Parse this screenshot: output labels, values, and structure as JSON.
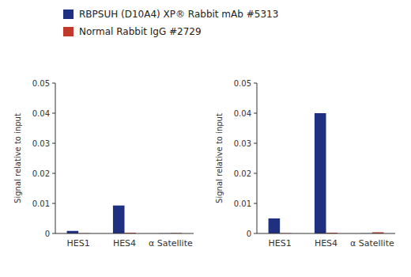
{
  "chart_data": [
    {
      "type": "bar",
      "categories": [
        "HES1",
        "HES4",
        "α Satellite"
      ],
      "series": [
        {
          "name": "RBPSUH (D10A4) XP® Rabbit mAb #5313",
          "color": "#1f3080",
          "values": [
            0.00085,
            0.0093,
            5e-05
          ]
        },
        {
          "name": "Normal Rabbit IgG #2729",
          "color": "#c0392b",
          "values": [
            8e-05,
            0.00025,
            0.00015
          ]
        }
      ],
      "y_label": "Signal relative to input",
      "ylim": [
        0,
        0.05
      ],
      "yticks": [
        0,
        0.01,
        0.02,
        0.03,
        0.04,
        0.05
      ],
      "grid": false,
      "legend": "top"
    },
    {
      "type": "bar",
      "categories": [
        "HES1",
        "HES4",
        "α Satellite"
      ],
      "series": [
        {
          "color": "#1f3080",
          "values": [
            0.005,
            0.04,
            5e-05
          ]
        },
        {
          "color": "#c0392b",
          "values": [
            0.0001,
            0.00025,
            0.0004
          ]
        }
      ],
      "y_label": "Signal relative to input",
      "ylim": [
        0,
        0.05
      ],
      "yticks": [
        0,
        0.01,
        0.02,
        0.03,
        0.04,
        0.05
      ],
      "grid": false
    }
  ]
}
